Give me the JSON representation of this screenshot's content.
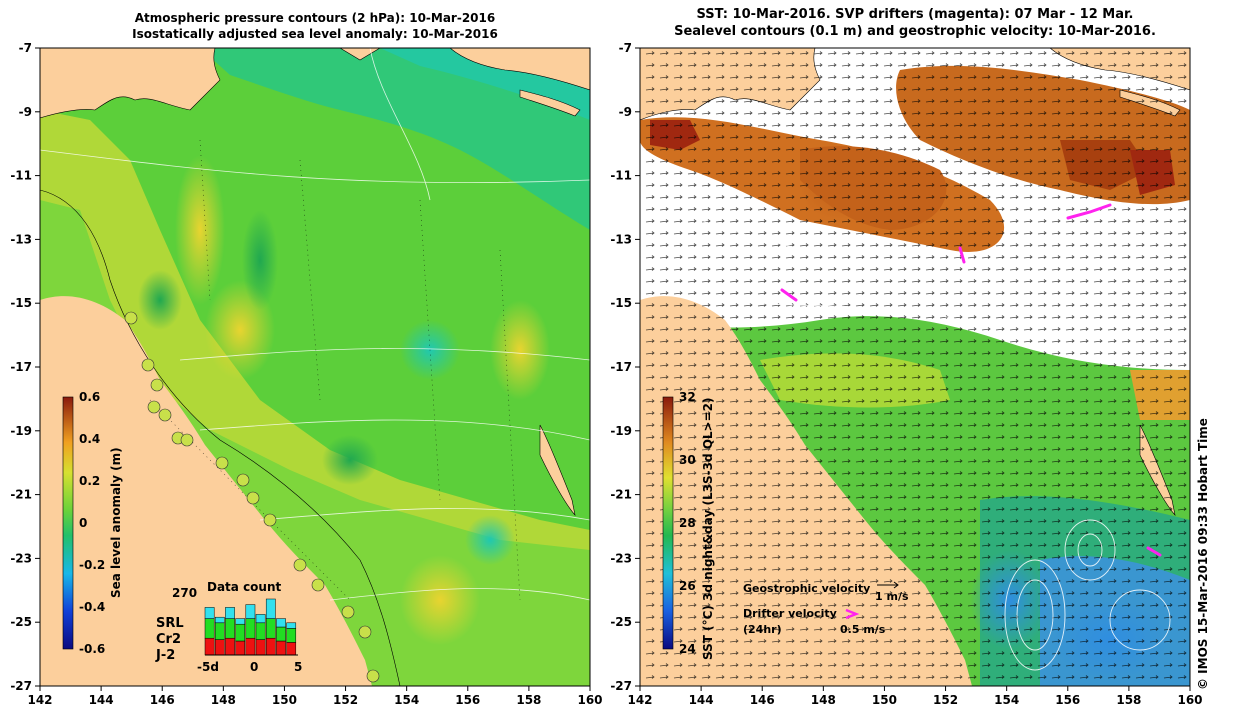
{
  "left_panel": {
    "title_line1": "Atmospheric pressure contours (2 hPa): 10-Mar-2016",
    "title_line2": "Isostatically adjusted sea level anomaly: 10-Mar-2016",
    "colorbar_label": "Sea level anomaly (m)",
    "colorbar_ticks": [
      "0.6",
      "0.4",
      "0.2",
      "0",
      "-0.2",
      "-0.4",
      "-0.6"
    ],
    "data_count": {
      "title": "Data count",
      "max_label": "270",
      "x_labels": [
        "-5d",
        "0",
        "5"
      ],
      "legend": [
        {
          "name": "SRL",
          "color": "#33e0ee"
        },
        {
          "name": "Cr2",
          "color": "#22dd22"
        },
        {
          "name": "J-2",
          "color": "#ee1111"
        }
      ]
    }
  },
  "right_panel": {
    "title_line1": "SST: 10-Mar-2016. SVP drifters (magenta): 07 Mar - 12 Mar.",
    "title_line2": "Sealevel contours (0.1 m) and geostrophic velocity: 10-Mar-2016.",
    "colorbar_label": "SST (°C) 3d night&day (L3S-3d QL>=2)",
    "colorbar_ticks": [
      "32",
      "30",
      "28",
      "26",
      "24"
    ],
    "geostrophic_label": "Geostrophic velocity",
    "geostrophic_scale": "1 m/s",
    "drifter_label_line1": "Drifter velocity",
    "drifter_label_line2": "(24hr)",
    "drifter_scale": "0.5 m/s"
  },
  "axes": {
    "x_ticks": [
      "142",
      "144",
      "146",
      "148",
      "150",
      "152",
      "154",
      "156",
      "158",
      "160"
    ],
    "y_ticks": [
      "-7",
      "-9",
      "-11",
      "-13",
      "-15",
      "-17",
      "-19",
      "-21",
      "-23",
      "-25",
      "-27"
    ]
  },
  "credit": "© IMOS 15-Mar-2016 09:33 Hobart Time",
  "colors": {
    "land": "#fccf9c",
    "ssa_mid": "#5ccf3a",
    "sst_orange": "#d0701e"
  }
}
